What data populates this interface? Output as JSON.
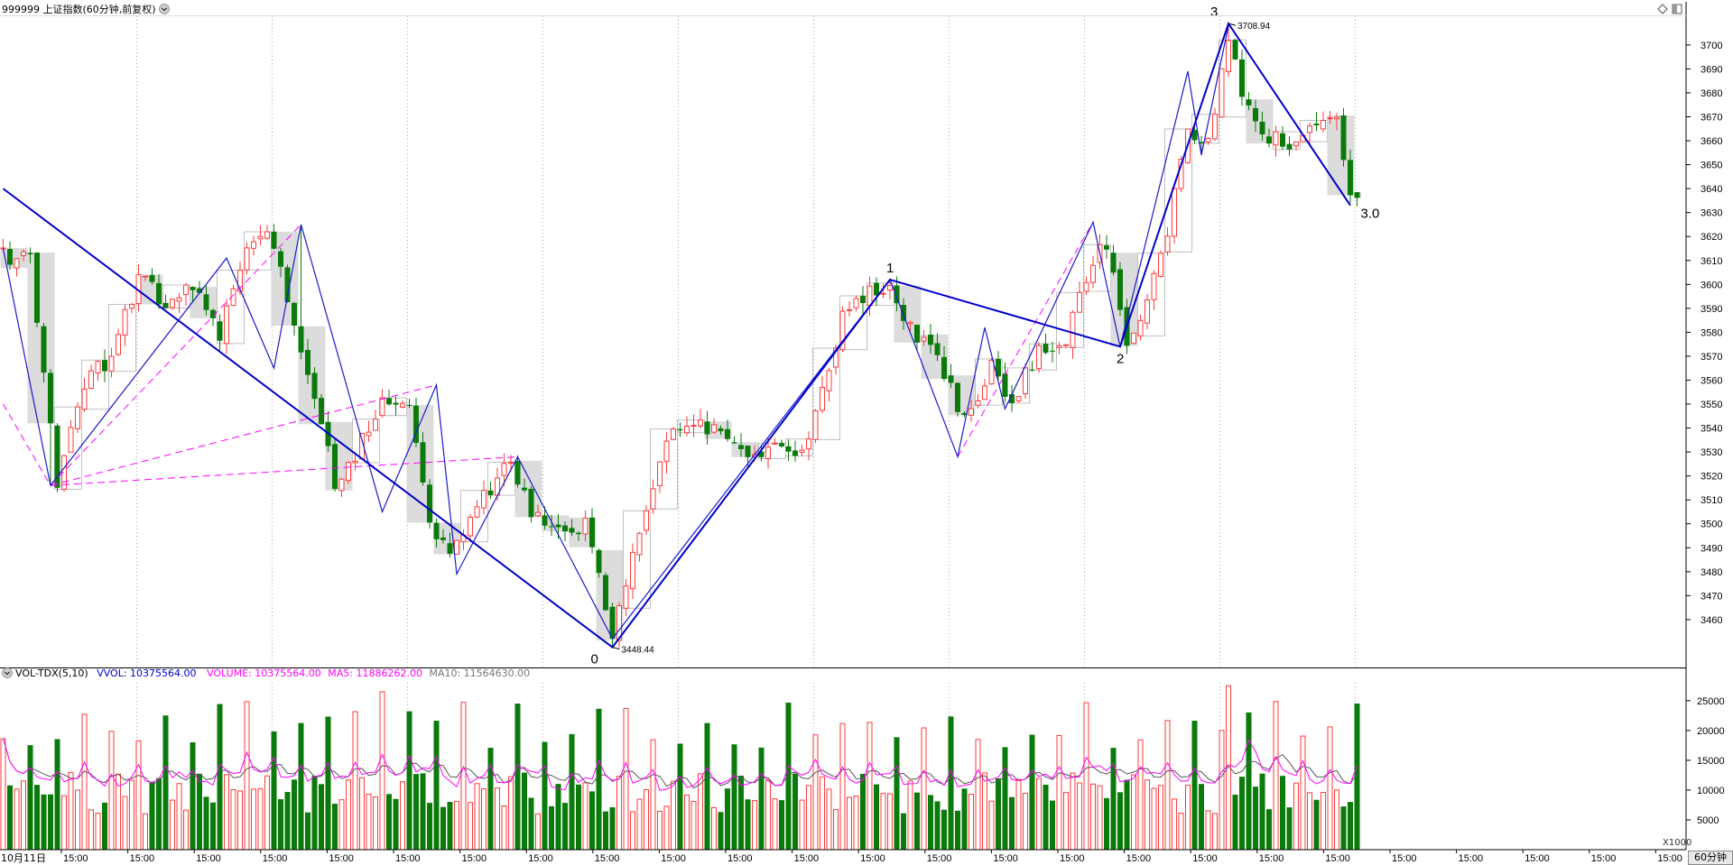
{
  "header": {
    "title": "999999 上证指数(60分钟,前复权)",
    "chevron_icon": "chevron-down-icon",
    "diamond_icon": "diamond-icon",
    "window_icon": "window-restore-icon"
  },
  "volume_header": {
    "indicator": "VOL-TDX(5,10)",
    "vvol": "VVOL: 10375564.00",
    "volume": "VOLUME: 10375564.00",
    "ma5": "MA5: 11886262.00",
    "ma10": "MA10: 11564630.00"
  },
  "footer": {
    "first_date": "10月11日",
    "period_button": "60分钟",
    "scale_label": "X1000"
  },
  "colors": {
    "up": "#ff3b3b",
    "down": "#0a7a0a",
    "zigzag_main": "#0000cc",
    "zigzag_fine": "#1a1acc",
    "dashed": "#ff00ff",
    "ma5": "#ff00ff",
    "ma10": "#555555",
    "box_up": "#c0c0c0",
    "box_down": "#d6d6d6",
    "vvol_text": "#0000cc",
    "volume_text": "#ff00ff",
    "ma5_text": "#ff00ff",
    "ma10_text": "#777777"
  },
  "chart_data": {
    "type": "candlestick",
    "price_axis": {
      "min": 3440,
      "max": 3712,
      "ticks": [
        3460,
        3470,
        3480,
        3490,
        3500,
        3510,
        3520,
        3530,
        3540,
        3550,
        3560,
        3570,
        3580,
        3590,
        3600,
        3610,
        3620,
        3630,
        3640,
        3650,
        3660,
        3670,
        3680,
        3690,
        3700
      ]
    },
    "volume_axis": {
      "min": 0,
      "max": 28000,
      "ticks": [
        5000,
        10000,
        15000,
        20000,
        25000
      ],
      "unit": "X1000"
    },
    "x_tick_label": "15:00",
    "x_tick_count": 25,
    "anchor_points": [
      {
        "bar": 0,
        "price": 3612
      },
      {
        "bar": 4,
        "price": 3610
      },
      {
        "bar": 8,
        "price": 3518
      },
      {
        "bar": 12,
        "price": 3560
      },
      {
        "bar": 16,
        "price": 3570
      },
      {
        "bar": 20,
        "price": 3602
      },
      {
        "bar": 24,
        "price": 3592
      },
      {
        "bar": 28,
        "price": 3600
      },
      {
        "bar": 32,
        "price": 3580
      },
      {
        "bar": 36,
        "price": 3612
      },
      {
        "bar": 39,
        "price": 3622
      },
      {
        "bar": 42,
        "price": 3595
      },
      {
        "bar": 46,
        "price": 3555
      },
      {
        "bar": 49,
        "price": 3518
      },
      {
        "bar": 52,
        "price": 3530
      },
      {
        "bar": 56,
        "price": 3552
      },
      {
        "bar": 60,
        "price": 3546
      },
      {
        "bar": 63,
        "price": 3503
      },
      {
        "bar": 66,
        "price": 3485
      },
      {
        "bar": 69,
        "price": 3500
      },
      {
        "bar": 72,
        "price": 3516
      },
      {
        "bar": 75,
        "price": 3525
      },
      {
        "bar": 78,
        "price": 3505
      },
      {
        "bar": 82,
        "price": 3497
      },
      {
        "bar": 86,
        "price": 3500
      },
      {
        "bar": 90,
        "price": 3452
      },
      {
        "bar": 94,
        "price": 3500
      },
      {
        "bar": 98,
        "price": 3533
      },
      {
        "bar": 102,
        "price": 3545
      },
      {
        "bar": 106,
        "price": 3537
      },
      {
        "bar": 110,
        "price": 3528
      },
      {
        "bar": 114,
        "price": 3534
      },
      {
        "bar": 118,
        "price": 3527
      },
      {
        "bar": 121,
        "price": 3555
      },
      {
        "bar": 124,
        "price": 3585
      },
      {
        "bar": 127,
        "price": 3596
      },
      {
        "bar": 131,
        "price": 3600
      },
      {
        "bar": 134,
        "price": 3582
      },
      {
        "bar": 138,
        "price": 3570
      },
      {
        "bar": 142,
        "price": 3542
      },
      {
        "bar": 146,
        "price": 3565
      },
      {
        "bar": 149,
        "price": 3552
      },
      {
        "bar": 153,
        "price": 3571
      },
      {
        "bar": 157,
        "price": 3576
      },
      {
        "bar": 160,
        "price": 3602
      },
      {
        "bar": 163,
        "price": 3618
      },
      {
        "bar": 166,
        "price": 3578
      },
      {
        "bar": 169,
        "price": 3590
      },
      {
        "bar": 172,
        "price": 3624
      },
      {
        "bar": 175,
        "price": 3665
      },
      {
        "bar": 178,
        "price": 3660
      },
      {
        "bar": 181,
        "price": 3700
      },
      {
        "bar": 183,
        "price": 3682
      },
      {
        "bar": 186,
        "price": 3664
      },
      {
        "bar": 190,
        "price": 3656
      },
      {
        "bar": 194,
        "price": 3665
      },
      {
        "bar": 197,
        "price": 3668
      },
      {
        "bar": 199,
        "price": 3634
      }
    ],
    "wave_labels": [
      {
        "label": "0",
        "bar": 90,
        "price": 3448.44,
        "value_label": "3448.44"
      },
      {
        "label": "1",
        "bar": 131,
        "price": 3602
      },
      {
        "label": "2",
        "bar": 165,
        "price": 3574
      },
      {
        "label": "3",
        "bar": 181,
        "price": 3708.94,
        "value_label": "3708.94"
      },
      {
        "label": "3.0",
        "bar": 200,
        "price": 3633
      }
    ],
    "zigzag_main": [
      {
        "bar": 0,
        "price": 3640
      },
      {
        "bar": 90,
        "price": 3448.44
      },
      {
        "bar": 131,
        "price": 3602
      },
      {
        "bar": 165,
        "price": 3574
      },
      {
        "bar": 181,
        "price": 3708.94
      },
      {
        "bar": 199,
        "price": 3633
      }
    ],
    "zigzag_fine": [
      {
        "bar": 0,
        "price": 3615
      },
      {
        "bar": 7,
        "price": 3516
      },
      {
        "bar": 33,
        "price": 3611
      },
      {
        "bar": 40,
        "price": 3565
      },
      {
        "bar": 44,
        "price": 3625
      },
      {
        "bar": 56,
        "price": 3505
      },
      {
        "bar": 64,
        "price": 3558
      },
      {
        "bar": 67,
        "price": 3479
      },
      {
        "bar": 76,
        "price": 3528
      },
      {
        "bar": 90,
        "price": 3452
      },
      {
        "bar": 131,
        "price": 3602
      },
      {
        "bar": 141,
        "price": 3528
      },
      {
        "bar": 145,
        "price": 3582
      },
      {
        "bar": 148,
        "price": 3548
      },
      {
        "bar": 161,
        "price": 3626
      },
      {
        "bar": 165,
        "price": 3574
      },
      {
        "bar": 175,
        "price": 3689
      },
      {
        "bar": 177,
        "price": 3654
      },
      {
        "bar": 181,
        "price": 3708
      }
    ],
    "dashed_fan": [
      {
        "from_bar": 7,
        "from_price": 3516,
        "to_bar": 44,
        "to_price": 3625
      },
      {
        "from_bar": 7,
        "from_price": 3516,
        "to_bar": 33,
        "to_price": 3611
      },
      {
        "from_bar": 7,
        "from_price": 3516,
        "to_bar": 64,
        "to_price": 3558
      },
      {
        "from_bar": 7,
        "from_price": 3516,
        "to_bar": 76,
        "to_price": 3528
      },
      {
        "from_bar": 0,
        "from_price": 3550,
        "to_bar": 7,
        "to_price": 3516
      },
      {
        "from_bar": 141,
        "from_price": 3528,
        "to_bar": 161,
        "to_price": 3626
      }
    ]
  }
}
